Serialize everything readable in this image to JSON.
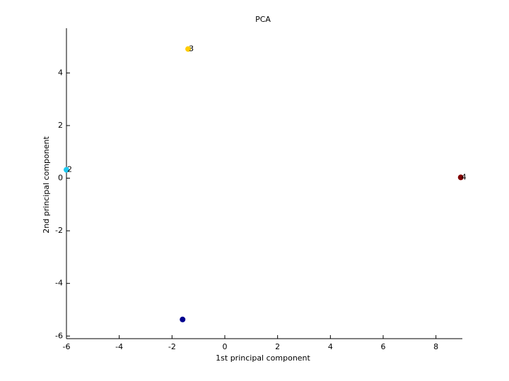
{
  "chart_data": {
    "type": "scatter",
    "title": "PCA",
    "x_label": "1st principal component",
    "y_label": "2nd principal component",
    "xlim": [
      -6,
      9
    ],
    "ylim": [
      -6.1,
      5.7
    ],
    "xticks": [
      -6,
      -4,
      -2,
      0,
      2,
      4,
      6,
      8
    ],
    "yticks": [
      -6,
      -4,
      -2,
      0,
      2,
      4
    ],
    "points": [
      {
        "x": -1.6,
        "y": -5.37,
        "color": "#00008f",
        "label": null
      },
      {
        "x": -6.0,
        "y": 0.32,
        "color": "#1ec8f0",
        "label": "2"
      },
      {
        "x": -1.39,
        "y": 4.91,
        "color": "#ffcc00",
        "label": "3"
      },
      {
        "x": 8.94,
        "y": 0.03,
        "color": "#800000",
        "label": "4"
      }
    ]
  }
}
